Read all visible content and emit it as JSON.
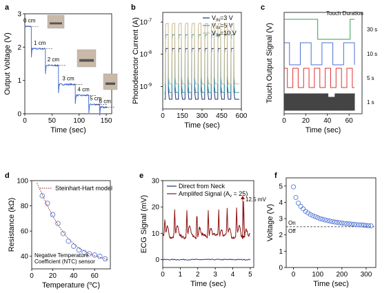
{
  "colors": {
    "blue": "#4a6fd6",
    "navy": "#1c2f6e",
    "teal": "#2e9aa8",
    "tan": "#c8b78a",
    "green": "#2f9e5a",
    "red": "#e03030",
    "gray": "#444444",
    "darkred": "#8b1010",
    "dashed": "#222222"
  },
  "chart_data": [
    {
      "panel": "a",
      "type": "line",
      "xlabel": "Time (sec)",
      "ylabel": "Output Voltage (V)",
      "xlim": [
        0,
        160
      ],
      "ylim": [
        0,
        3
      ],
      "xticks": [
        0,
        50,
        100,
        150
      ],
      "yticks": [
        0,
        1,
        2,
        3
      ],
      "steps": [
        {
          "label": "0 cm",
          "t": [
            0,
            12
          ],
          "v": 2.62
        },
        {
          "label": "1 cm",
          "t": [
            12,
            38
          ],
          "v": 1.95
        },
        {
          "label": "2 cm",
          "t": [
            38,
            62
          ],
          "v": 1.45
        },
        {
          "label": "3 cm",
          "t": [
            62,
            93
          ],
          "v": 0.88
        },
        {
          "label": "4 cm",
          "t": [
            93,
            118
          ],
          "v": 0.55
        },
        {
          "label": "5 cm",
          "t": [
            118,
            138
          ],
          "v": 0.28
        },
        {
          "label": "6 cm",
          "t": [
            138,
            152
          ],
          "v": 0.2
        }
      ]
    },
    {
      "panel": "b",
      "type": "line",
      "xlabel": "Time (sec)",
      "ylabel": "Photodetector Current (A)",
      "xlim": [
        0,
        600
      ],
      "ylim": [
        2e-10,
        2e-07
      ],
      "log_y": true,
      "xticks": [
        0,
        150,
        300,
        450,
        600
      ],
      "yticks": [
        {
          "value": 1e-09,
          "base": "10",
          "exp": "-9"
        },
        {
          "value": 1e-08,
          "base": "10",
          "exp": "-8"
        },
        {
          "value": 1e-07,
          "base": "10",
          "exp": "-7"
        }
      ],
      "legend_position": "top-right",
      "pulses": 11,
      "period_s": 50,
      "series": [
        {
          "name": "V",
          "sub": "IN",
          "suffix": "=3 V",
          "high": 1.5e-08,
          "low": 4e-10
        },
        {
          "name": "V",
          "sub": "IN",
          "suffix": "=5 V",
          "high": 4e-08,
          "low": 6.5e-10
        },
        {
          "name": "V",
          "sub": "IN",
          "suffix": "=10 V",
          "high": 9e-08,
          "low": 1.2e-09
        }
      ]
    },
    {
      "panel": "c",
      "type": "line",
      "xlabel": "Time (sec)",
      "ylabel": "Touch Output Signal (V)",
      "xlim": [
        0,
        72
      ],
      "xticks": [
        0,
        20,
        40,
        60
      ],
      "annotation": "Touch Duration",
      "series": [
        {
          "name": "30 s",
          "period_s": 30,
          "start_s": 5
        },
        {
          "name": "10 s",
          "period_s": 10,
          "start_s": 5
        },
        {
          "name": "5 s",
          "period_s": 5,
          "start_s": 3
        },
        {
          "name": "1 s",
          "period_s": 1,
          "start_s": 0
        }
      ]
    },
    {
      "panel": "d",
      "type": "scatter",
      "xlabel": "Temperature (",
      "xlabel_sup": "o",
      "xlabel_end": "C)",
      "ylabel": "Resistance (kΩ)",
      "xlim": [
        0,
        75
      ],
      "ylim": [
        30,
        100
      ],
      "xticks": [
        0,
        20,
        40,
        60
      ],
      "yticks": [
        40,
        60,
        80,
        100
      ],
      "legend": "Steinhart-Hart model",
      "annotation_lines": [
        "Negative Temperature",
        "Coefficient (NTC) sensor"
      ],
      "points_x": [
        10,
        15,
        20,
        25,
        30,
        35,
        40,
        45,
        50,
        55,
        60,
        65,
        70
      ],
      "points_y": [
        88,
        82,
        73,
        66,
        58,
        52,
        48,
        45,
        43,
        42,
        41,
        40,
        38
      ],
      "fit_x": [
        5,
        10,
        15,
        20,
        25,
        30,
        35,
        40,
        45,
        50,
        55,
        60,
        65,
        70,
        73
      ],
      "fit_y": [
        98,
        89,
        80,
        72,
        65,
        59,
        54,
        50,
        46.5,
        44,
        42,
        40.5,
        39.2,
        38,
        37
      ]
    },
    {
      "panel": "e",
      "type": "line",
      "xlabel": "Time (sec)",
      "ylabel": "ECG Signal (mV)",
      "xlim": [
        0,
        5.2
      ],
      "ylim": [
        -3,
        30
      ],
      "xticks": [
        0,
        1,
        2,
        3,
        4,
        5
      ],
      "yticks": [
        0,
        10,
        20,
        30
      ],
      "annotation": "12.5 mV",
      "legend_position": "top",
      "series": [
        {
          "name": "Direct from Neck",
          "baseline": 0
        },
        {
          "name": "Amplifed Signal (A",
          "sub": "v",
          "suffix": " = 25)",
          "baseline": 9,
          "peak": 21,
          "beats_s": [
            0.12,
            0.68,
            1.38,
            1.95,
            2.6,
            3.2,
            3.68,
            4.22,
            4.62
          ]
        }
      ]
    },
    {
      "panel": "f",
      "type": "scatter",
      "xlabel": "Time (sec)",
      "ylabel": "Voltage (V)",
      "xlim": [
        -30,
        340
      ],
      "ylim": [
        0,
        5.5
      ],
      "xticks": [
        0,
        100,
        200,
        300
      ],
      "yticks": [
        0,
        1,
        2,
        3,
        4,
        5
      ],
      "threshold": 2.5,
      "threshold_labels": [
        "On",
        "Off"
      ],
      "points_x": [
        0,
        10,
        20,
        30,
        40,
        50,
        60,
        70,
        80,
        90,
        100,
        110,
        120,
        130,
        140,
        150,
        160,
        170,
        180,
        190,
        200,
        210,
        220,
        230,
        240,
        250,
        260,
        270,
        280,
        290,
        300,
        310,
        320
      ],
      "points_y": [
        4.95,
        4.3,
        3.95,
        3.75,
        3.6,
        3.45,
        3.35,
        3.25,
        3.18,
        3.12,
        3.06,
        3.0,
        2.96,
        2.92,
        2.88,
        2.85,
        2.82,
        2.79,
        2.77,
        2.75,
        2.73,
        2.71,
        2.69,
        2.68,
        2.66,
        2.65,
        2.63,
        2.62,
        2.61,
        2.6,
        2.58,
        2.57,
        2.56
      ]
    }
  ]
}
